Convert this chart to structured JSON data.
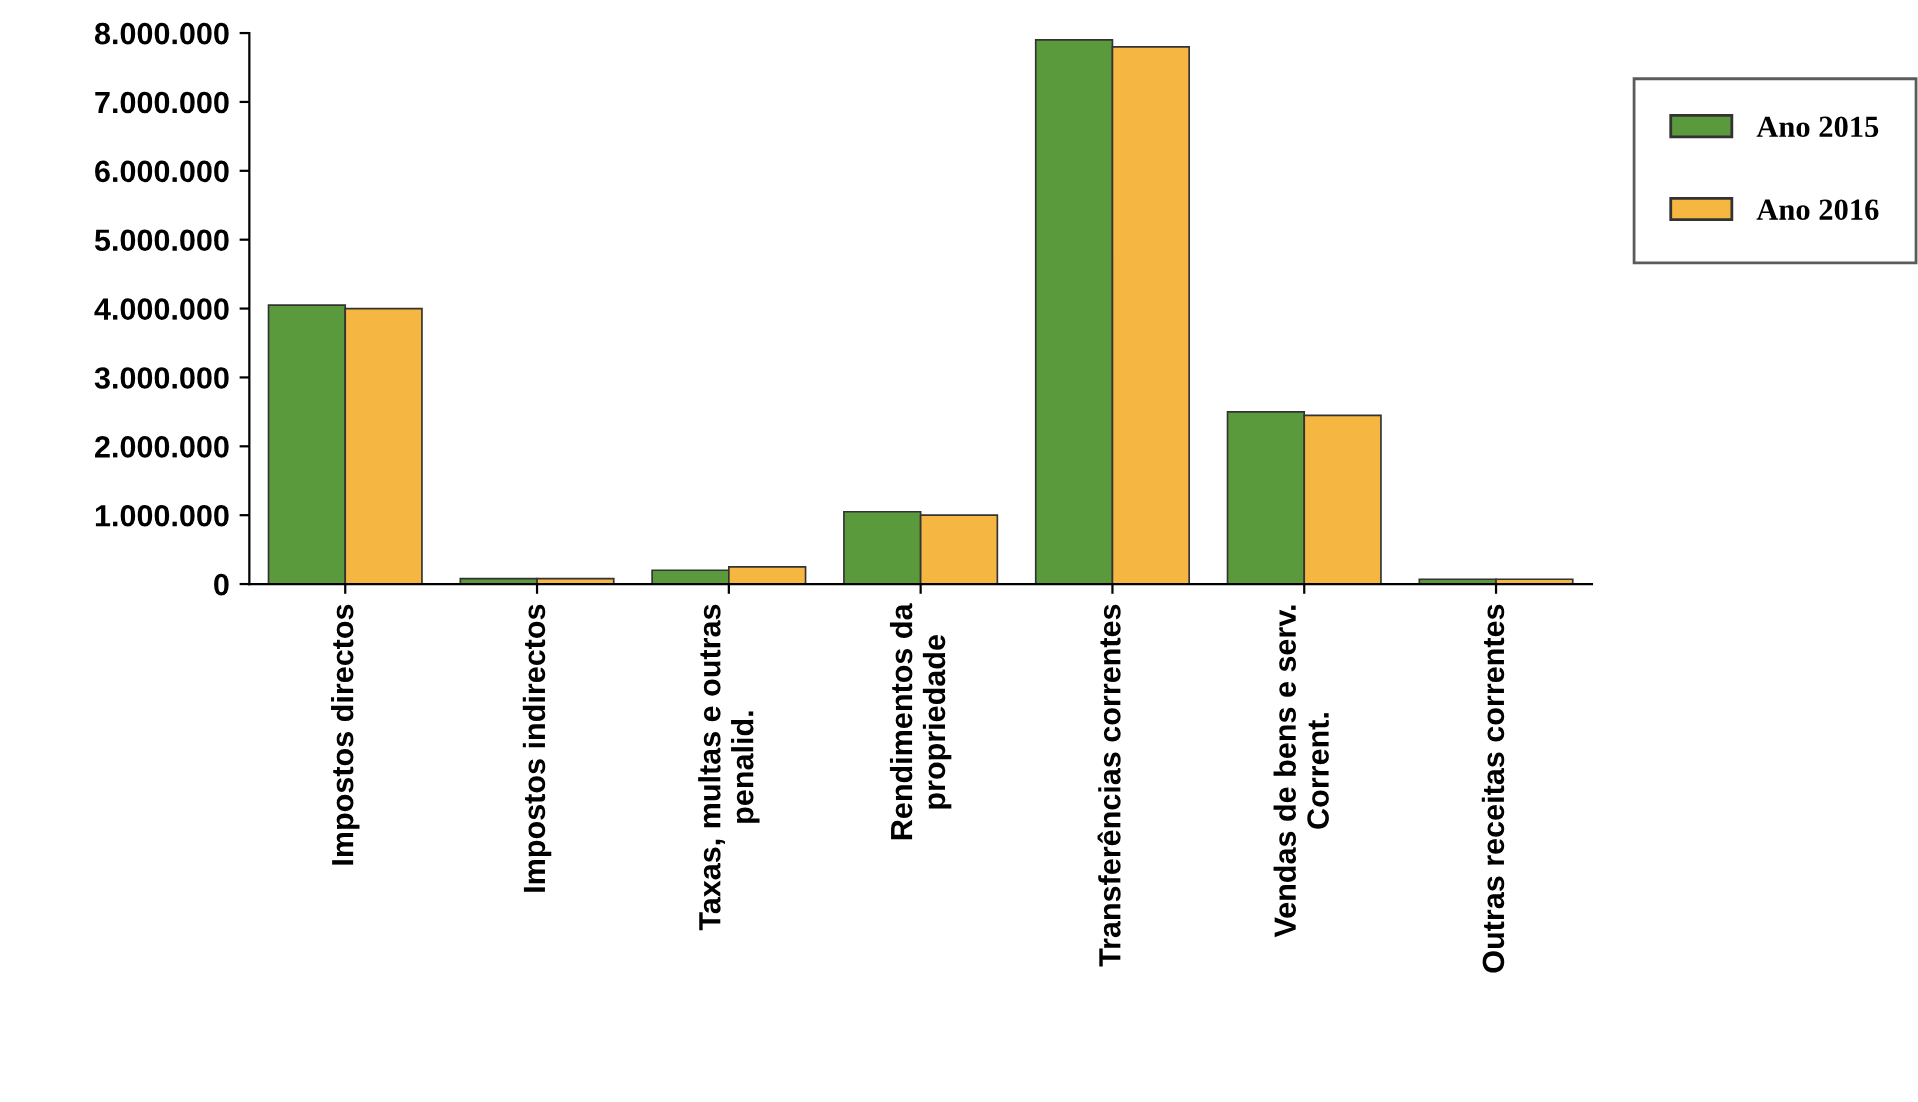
{
  "chart_data": {
    "type": "bar",
    "categories": [
      "Impostos directos",
      "Impostos indirectos",
      "Taxas, multas e outras\npenalid.",
      "Rendimentos da\npropriedade",
      "Transferências correntes",
      "Vendas de bens e serv.\nCorrent.",
      "Outras receitas correntes"
    ],
    "series": [
      {
        "name": "Ano 2015",
        "color": "#5a9a3c",
        "values": [
          4050000,
          80000,
          200000,
          1050000,
          7900000,
          2500000,
          70000
        ]
      },
      {
        "name": "Ano 2016",
        "color": "#f5b642",
        "values": [
          4000000,
          80000,
          250000,
          1000000,
          7800000,
          2450000,
          70000
        ]
      }
    ],
    "ylim": [
      0,
      8000000
    ],
    "yticks": [
      {
        "value": 0,
        "label": "0"
      },
      {
        "value": 1000000,
        "label": "1.000.000"
      },
      {
        "value": 2000000,
        "label": "2.000.000"
      },
      {
        "value": 3000000,
        "label": "3.000.000"
      },
      {
        "value": 4000000,
        "label": "4.000.000"
      },
      {
        "value": 5000000,
        "label": "5.000.000"
      },
      {
        "value": 6000000,
        "label": "6.000.000"
      },
      {
        "value": 7000000,
        "label": "7.000.000"
      },
      {
        "value": 8000000,
        "label": "8.000.000"
      }
    ],
    "grid": false,
    "legend": "right"
  }
}
